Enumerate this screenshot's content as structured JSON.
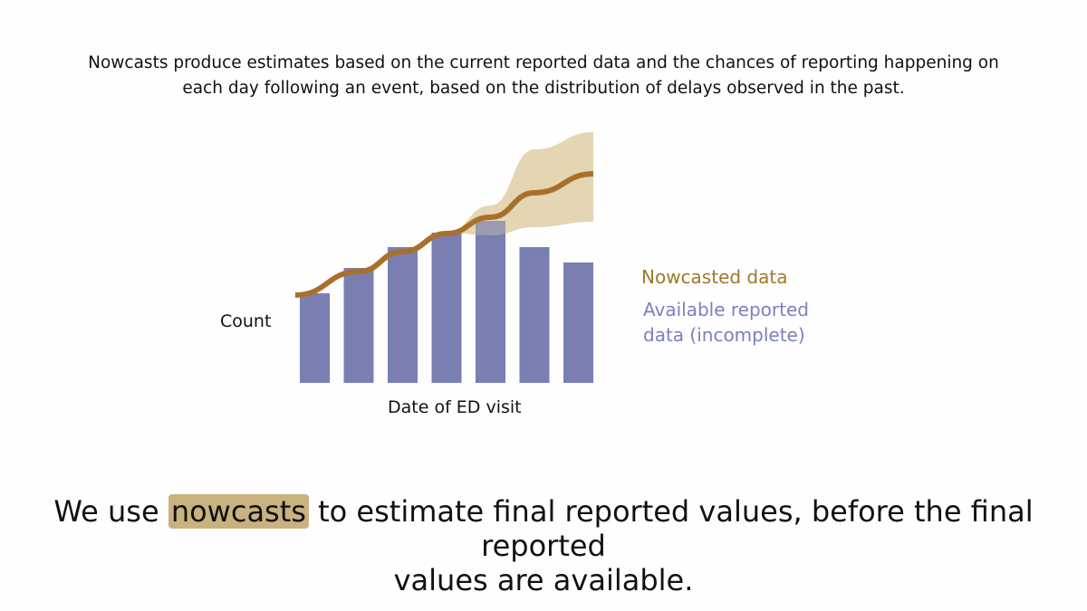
{
  "intro": {
    "line1": "Nowcasts produce estimates based on the current reported data and the chances of reporting happening on",
    "line2": "each day following an event, based on the distribution of delays observed in the past."
  },
  "chart_data": {
    "type": "bar",
    "xlabel": "Date of ED visit",
    "ylabel": "Count",
    "ylim": [
      0,
      300
    ],
    "bars": {
      "name": "Available reported data (incomplete)",
      "values": [
        99,
        127,
        150,
        166,
        179,
        150,
        133
      ],
      "color": "#7a7fb2"
    },
    "nowcast": {
      "name": "Nowcasted data",
      "values": [
        97,
        123,
        145,
        165,
        183,
        210,
        231
      ],
      "color": "#a8702a"
    },
    "nowcast_interval": {
      "lower": [
        null,
        null,
        null,
        166,
        163,
        172,
        178
      ],
      "upper": [
        null,
        null,
        null,
        166,
        196,
        258,
        277
      ],
      "color": "#dfcfa6"
    },
    "legend": [
      "Nowcasted data",
      "Available reported data (incomplete)"
    ],
    "legend_colors": [
      "#a07828",
      "#7b7fc0"
    ],
    "grid": false
  },
  "legend": {
    "nowcast": "Nowcasted data",
    "reported": "Available reported data (incomplete)"
  },
  "takeaway": {
    "prefix": "We use",
    "highlight": "nowcasts",
    "suffix": "to estimate final reported values, before the final reported",
    "line2": "values are available."
  }
}
